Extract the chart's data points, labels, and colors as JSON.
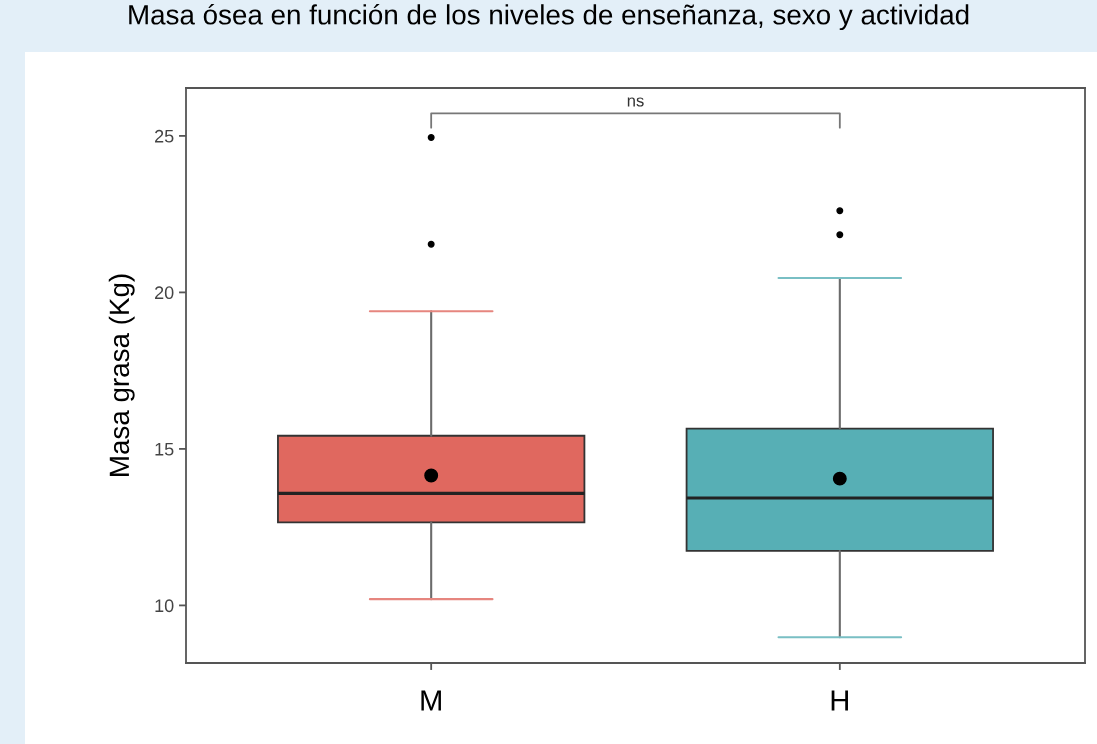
{
  "chart_data": {
    "type": "box",
    "title": "Masa ósea en función de los niveles de enseñanza, sexo y actividad",
    "ylabel": "Masa grasa (Kg)",
    "categories": [
      "M",
      "H"
    ],
    "colors": [
      "#e0685f",
      "#57afb5"
    ],
    "boxes": [
      {
        "low": 10.2,
        "q1": 12.65,
        "median": 13.58,
        "q3": 15.42,
        "high": 19.4,
        "mean": 14.15,
        "outliers": [
          21.54,
          24.95
        ]
      },
      {
        "low": 8.98,
        "q1": 11.74,
        "median": 13.43,
        "q3": 15.65,
        "high": 20.46,
        "mean": 14.05,
        "outliers": [
          21.84,
          22.61
        ]
      }
    ],
    "ylim": [
      8.16,
      26.53
    ],
    "yticks": [
      10,
      15,
      20,
      25
    ],
    "grid": false,
    "annotations": [
      "ns"
    ]
  }
}
